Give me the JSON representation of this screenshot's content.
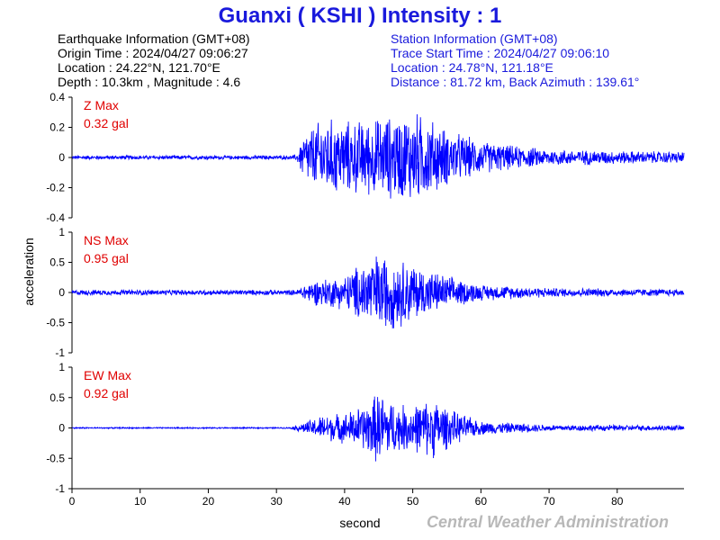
{
  "title": "Guanxi ( KSHI ) Intensity : 1",
  "earthquake_info": {
    "heading": "Earthquake Information  (GMT+08)",
    "origin_time": "Origin Time : 2024/04/27 09:06:27",
    "location": "Location : 24.22°N, 121.70°E",
    "depth_magnitude": "Depth : 10.3km , Magnitude : 4.6"
  },
  "station_info": {
    "heading": "Station Information  (GMT+08)",
    "trace_start": "Trace Start Time : 2024/04/27 09:06:10",
    "location": "Location : 24.78°N, 121.18°E",
    "distance": "Distance : 81.72 km, Back Azimuth : 139.61°"
  },
  "credit": "Central Weather Administration",
  "colors": {
    "title": "#1a1adc",
    "trace": "#0000ff",
    "max_label": "#e00000",
    "credit": "#b8b8b8"
  },
  "chart_data": {
    "type": "line",
    "xlabel": "second",
    "ylabel": "acceleration",
    "xlim": [
      0,
      89.8
    ],
    "xticks": [
      0,
      10,
      20,
      30,
      40,
      50,
      60,
      70,
      80
    ],
    "panels": [
      {
        "component": "Z",
        "max_label": "Z Max",
        "max_value": "0.32 gal",
        "ylim": [
          -0.4,
          0.4
        ],
        "yticks": [
          -0.4,
          -0.2,
          0,
          0.2,
          0.4
        ],
        "ytick_labels": [
          "-0.4",
          "-0.2",
          "0",
          "0.2",
          "0.4"
        ],
        "envelope": [
          [
            0,
            0.012
          ],
          [
            32,
            0.012
          ],
          [
            33,
            0.02
          ],
          [
            34,
            0.15
          ],
          [
            37,
            0.24
          ],
          [
            40,
            0.22
          ],
          [
            44,
            0.23
          ],
          [
            46,
            0.25
          ],
          [
            48,
            0.26
          ],
          [
            50,
            0.28
          ],
          [
            52,
            0.25
          ],
          [
            55,
            0.17
          ],
          [
            60,
            0.1
          ],
          [
            65,
            0.07
          ],
          [
            70,
            0.05
          ],
          [
            80,
            0.04
          ],
          [
            89.8,
            0.035
          ]
        ]
      },
      {
        "component": "NS",
        "max_label": "NS Max",
        "max_value": "0.95 gal",
        "ylim": [
          -1,
          1
        ],
        "yticks": [
          -1,
          -0.5,
          0,
          0.5,
          1
        ],
        "ytick_labels": [
          "-1",
          "-0.5",
          "0",
          "0.5",
          "1"
        ],
        "envelope": [
          [
            0,
            0.04
          ],
          [
            33,
            0.04
          ],
          [
            34,
            0.12
          ],
          [
            36,
            0.2
          ],
          [
            40,
            0.25
          ],
          [
            43,
            0.5
          ],
          [
            45,
            0.6
          ],
          [
            47,
            0.55
          ],
          [
            50,
            0.45
          ],
          [
            52,
            0.35
          ],
          [
            55,
            0.25
          ],
          [
            60,
            0.12
          ],
          [
            70,
            0.07
          ],
          [
            89.8,
            0.05
          ]
        ]
      },
      {
        "component": "EW",
        "max_label": "EW Max",
        "max_value": "0.92 gal",
        "ylim": [
          -1,
          1
        ],
        "yticks": [
          -1,
          -0.5,
          0,
          0.5,
          1
        ],
        "ytick_labels": [
          "-1",
          "-0.5",
          "0",
          "0.5",
          "1"
        ],
        "envelope": [
          [
            0,
            0.01
          ],
          [
            32,
            0.01
          ],
          [
            34,
            0.08
          ],
          [
            37,
            0.2
          ],
          [
            40,
            0.22
          ],
          [
            43,
            0.35
          ],
          [
            45,
            0.55
          ],
          [
            48,
            0.35
          ],
          [
            50,
            0.35
          ],
          [
            53,
            0.45
          ],
          [
            56,
            0.25
          ],
          [
            60,
            0.1
          ],
          [
            70,
            0.05
          ],
          [
            89.8,
            0.04
          ]
        ]
      }
    ]
  }
}
